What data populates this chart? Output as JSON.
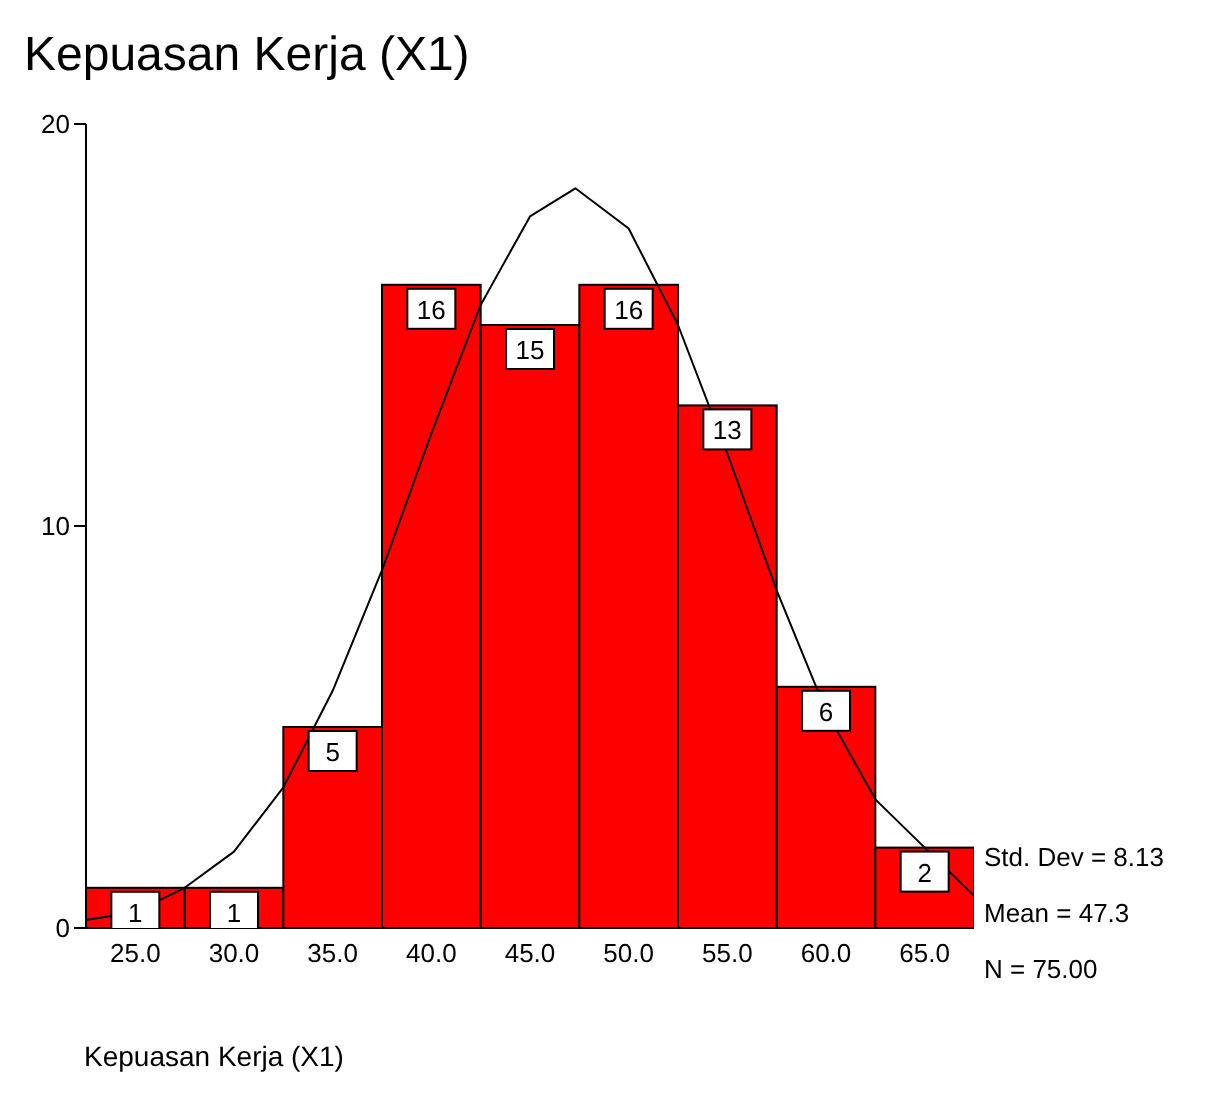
{
  "chart_data": {
    "type": "histogram",
    "title": "Kepuasan Kerja (X1)",
    "xlabel": "Kepuasan Kerja (X1)",
    "bins": [
      22.5,
      27.5,
      32.5,
      37.5,
      42.5,
      47.5,
      52.5,
      57.5,
      62.5,
      67.5
    ],
    "values": [
      1,
      1,
      5,
      16,
      15,
      16,
      13,
      6,
      2
    ],
    "color": "#ff0000",
    "value_labels": [
      "1",
      "1",
      "5",
      "16",
      "15",
      "16",
      "13",
      "6",
      "2"
    ],
    "series": [
      {
        "type": "line",
        "color": "#000000",
        "x": [
          22.5,
          25,
          27.5,
          30,
          32.5,
          35,
          37.5,
          40,
          42.5,
          45,
          47.3,
          50,
          52.5,
          55,
          57.5,
          60,
          62.5,
          67.5
        ],
        "values": [
          0.2,
          0.4,
          1.0,
          1.9,
          3.5,
          5.9,
          8.9,
          12.3,
          15.5,
          17.7,
          18.4,
          17.4,
          15.0,
          11.8,
          8.4,
          5.4,
          3.2,
          0.8
        ]
      }
    ],
    "xlim": [
      22.5,
      67.5
    ],
    "xticks": [
      {
        "value": 25,
        "label": "25.0"
      },
      {
        "value": 30,
        "label": "30.0"
      },
      {
        "value": 35,
        "label": "35.0"
      },
      {
        "value": 40,
        "label": "40.0"
      },
      {
        "value": 45,
        "label": "45.0"
      },
      {
        "value": 50,
        "label": "50.0"
      },
      {
        "value": 55,
        "label": "55.0"
      },
      {
        "value": 60,
        "label": "60.0"
      },
      {
        "value": 65,
        "label": "65.0"
      }
    ],
    "ylim": [
      0,
      20
    ],
    "yticks": [
      0,
      10,
      20
    ],
    "grid": false,
    "legend": false,
    "annotations": [
      "Std. Dev = 8.13",
      "Mean = 47.3",
      "N = 75.00"
    ]
  }
}
